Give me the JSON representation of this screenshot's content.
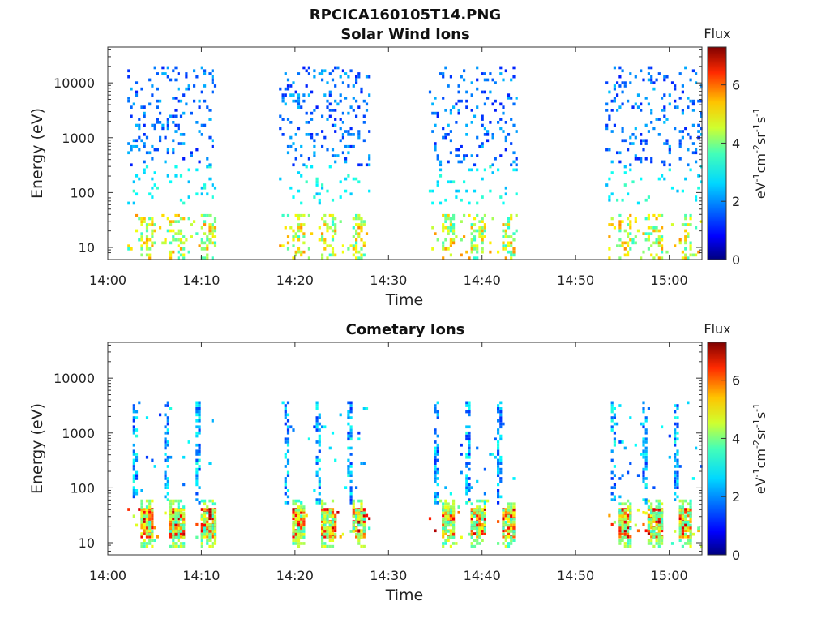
{
  "chart_data": [
    {
      "type": "heatmap",
      "title": "RPCICA160105T14.PNG",
      "subtitle": "Solar Wind Ions",
      "xlabel": "Time",
      "ylabel": "Energy (eV)",
      "x_ticks": [
        "14:00",
        "14:10",
        "14:20",
        "14:30",
        "14:40",
        "14:50",
        "15:00"
      ],
      "x_range_minutes": [
        0,
        63.5
      ],
      "y_scale": "log",
      "y_range": [
        6,
        45000
      ],
      "y_ticks": [
        "10",
        "100",
        "1000",
        "10000"
      ],
      "colorbar": {
        "title": "Flux",
        "label": "eV-1cm-2sr-1s-1",
        "range": [
          0,
          7.3
        ],
        "ticks": [
          "0",
          "2",
          "4",
          "6"
        ],
        "colormap": "jet"
      },
      "bursts": [
        {
          "start_min": 2.1,
          "end_min": 11.5
        },
        {
          "start_min": 18.3,
          "end_min": 27.9
        },
        {
          "start_min": 34.3,
          "end_min": 43.8
        },
        {
          "start_min": 53.2,
          "end_min": 63.5
        }
      ],
      "cells": [
        {
          "band": "low",
          "e_min": 6,
          "e_max": 40,
          "flux_min": 3,
          "flux_max": 5.4
        },
        {
          "band": "mid",
          "e_min": 60,
          "e_max": 300,
          "flux_min": 2.2,
          "flux_max": 3.2
        },
        {
          "band": "high",
          "e_min": 300,
          "e_max": 20000,
          "flux_min": 1.1,
          "flux_max": 2.3
        }
      ]
    },
    {
      "type": "heatmap",
      "title": "",
      "subtitle": "Cometary Ions",
      "xlabel": "Time",
      "ylabel": "Energy (eV)",
      "x_ticks": [
        "14:00",
        "14:10",
        "14:20",
        "14:30",
        "14:40",
        "14:50",
        "15:00"
      ],
      "x_range_minutes": [
        0,
        63.5
      ],
      "y_scale": "log",
      "y_range": [
        6,
        45000
      ],
      "y_ticks": [
        "10",
        "100",
        "1000",
        "10000"
      ],
      "colorbar": {
        "title": "Flux",
        "label": "eV-1cm-2sr-1s-1",
        "range": [
          0,
          7.3
        ],
        "ticks": [
          "0",
          "2",
          "4",
          "6"
        ],
        "colormap": "jet"
      },
      "bursts": [
        {
          "start_min": 2.1,
          "end_min": 11.5
        },
        {
          "start_min": 18.3,
          "end_min": 27.9
        },
        {
          "start_min": 34.3,
          "end_min": 43.8
        },
        {
          "start_min": 53.2,
          "end_min": 63.5
        }
      ],
      "cells": [
        {
          "band": "core",
          "e_min": 12,
          "e_max": 40,
          "flux_min": 4.5,
          "flux_max": 7.0
        },
        {
          "band": "halo",
          "e_min": 8,
          "e_max": 60,
          "flux_min": 3.0,
          "flux_max": 4.5
        },
        {
          "band": "streak",
          "e_min": 50,
          "e_max": 3500,
          "flux_min": 1.2,
          "flux_max": 3.0
        }
      ]
    }
  ]
}
